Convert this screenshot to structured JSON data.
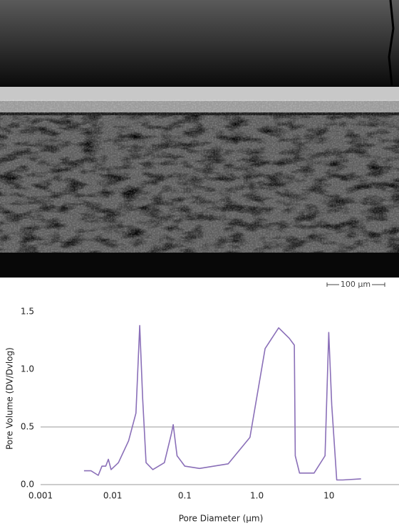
{
  "image": {
    "scale_bar": "100 μm"
  },
  "chart_data": {
    "type": "line",
    "x_label": "Pore Diameter (μm)",
    "y_label": "Pore Volume (DV/Dvlog)",
    "xscale": "log",
    "xlim": [
      0.001,
      100
    ],
    "xticks": [
      0.001,
      0.01,
      0.1,
      {
        "value": 1,
        "label": "1.0"
      },
      10
    ],
    "ylim": [
      0,
      1.5
    ],
    "yticks": [
      {
        "value": 0,
        "label": "0.0"
      },
      0.5,
      {
        "value": 1,
        "label": "1.0"
      },
      1.5
    ],
    "hlines": [
      0.5
    ],
    "series": [
      {
        "color": "#8a6fb8",
        "x": [
          0.004,
          0.005,
          0.0063,
          0.0071,
          0.008,
          0.0087,
          0.0095,
          0.012,
          0.0166,
          0.021,
          0.0237,
          0.026,
          0.029,
          0.036,
          0.052,
          0.065,
          0.069,
          0.078,
          0.1,
          0.16,
          0.4,
          0.8,
          1.3,
          2.0,
          2.8,
          3.3,
          3.4,
          3.9,
          6.2,
          8.8,
          9.9,
          10.9,
          12.8,
          15.5,
          27.8
        ],
        "values": [
          0.12,
          0.12,
          0.08,
          0.16,
          0.16,
          0.22,
          0.13,
          0.19,
          0.38,
          0.62,
          1.38,
          0.75,
          0.19,
          0.13,
          0.19,
          0.44,
          0.52,
          0.25,
          0.16,
          0.14,
          0.18,
          0.41,
          1.18,
          1.36,
          1.27,
          1.21,
          0.25,
          0.1,
          0.1,
          0.25,
          1.32,
          0.69,
          0.04,
          0.04,
          0.05
        ]
      }
    ]
  }
}
